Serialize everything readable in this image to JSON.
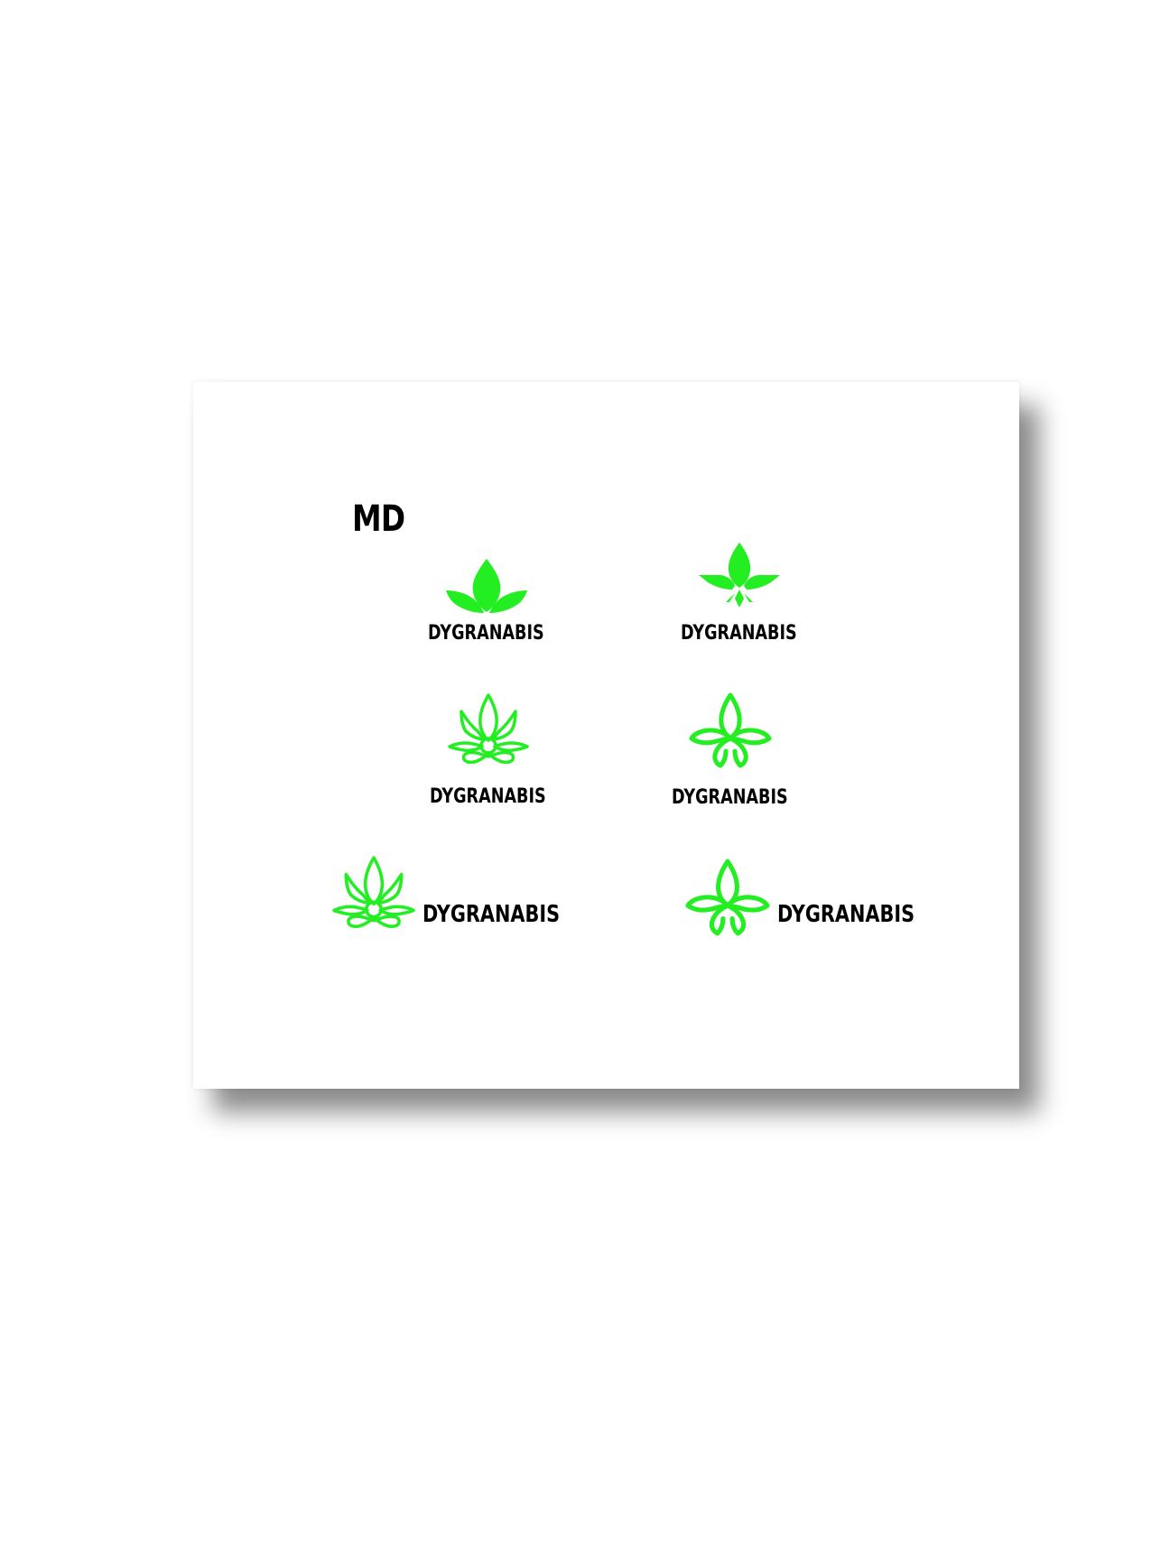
{
  "board": {
    "title": "MD"
  },
  "brand": {
    "accent_color": "#22ee22",
    "text_color": "#000000"
  },
  "logos": [
    {
      "wordmark": "DYGRANABIS",
      "icon": "solid-three-leaf-icon"
    },
    {
      "wordmark": "DYGRANABIS",
      "icon": "solid-fleur-leaf-icon"
    },
    {
      "wordmark": "DYGRANABIS",
      "icon": "outline-lotus-leaf-icon"
    },
    {
      "wordmark": "DYGRANABIS",
      "icon": "outline-knot-leaf-icon"
    },
    {
      "wordmark": "DYGRANABIS",
      "icon": "outline-lotus-leaf-icon"
    },
    {
      "wordmark": "DYGRANABIS",
      "icon": "outline-knot-leaf-icon"
    }
  ]
}
